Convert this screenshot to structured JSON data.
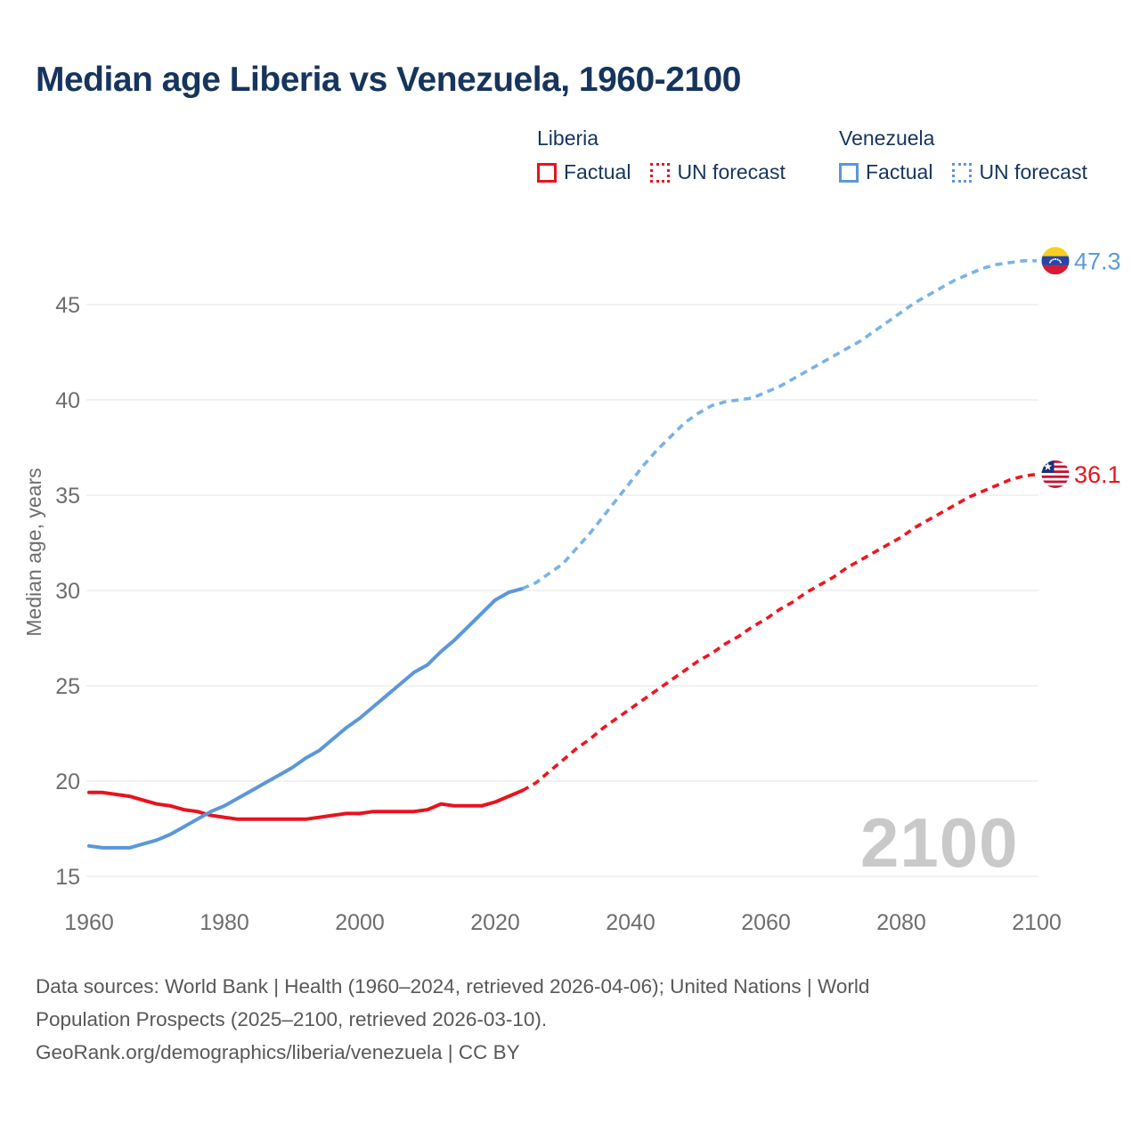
{
  "title": "Median age Liberia vs Venezuela, 1960-2100",
  "watermark": "2100",
  "legend": {
    "groups": [
      {
        "name": "Liberia",
        "color": "#e8131d",
        "items": [
          {
            "label": "Factual",
            "line_style": "solid"
          },
          {
            "label": "UN forecast",
            "line_style": "dashed"
          }
        ]
      },
      {
        "name": "Venezuela",
        "color": "#5b97d9",
        "items": [
          {
            "label": "Factual",
            "line_style": "solid"
          },
          {
            "label": "UN forecast",
            "line_style": "dashed"
          }
        ]
      }
    ]
  },
  "footer": {
    "lines": [
      "Data sources: World Bank | Health (1960–2024, retrieved 2026-04-06); United Nations | World",
      "Population Prospects (2025–2100, retrieved 2026-03-10).",
      "GeoRank.org/demographics/liberia/venezuela | CC BY"
    ]
  },
  "chart_data": {
    "type": "line",
    "title": "Median age Liberia vs Venezuela, 1960-2100",
    "xlabel": "",
    "ylabel": "Median age, years",
    "xlim": [
      1960,
      2100
    ],
    "ylim": [
      15,
      45
    ],
    "xticks": [
      1960,
      1980,
      2000,
      2020,
      2040,
      2060,
      2080,
      2100
    ],
    "yticks": [
      15,
      20,
      25,
      30,
      35,
      40,
      45
    ],
    "grid": "horizontal",
    "legend_position": "top",
    "series": [
      {
        "name": "Liberia — Factual",
        "color": "#e8131d",
        "line_style": "solid",
        "points": [
          [
            1960,
            19.4
          ],
          [
            1962,
            19.4
          ],
          [
            1964,
            19.3
          ],
          [
            1966,
            19.2
          ],
          [
            1968,
            19.0
          ],
          [
            1970,
            18.8
          ],
          [
            1972,
            18.7
          ],
          [
            1974,
            18.5
          ],
          [
            1976,
            18.4
          ],
          [
            1978,
            18.2
          ],
          [
            1980,
            18.1
          ],
          [
            1982,
            18.0
          ],
          [
            1984,
            18.0
          ],
          [
            1986,
            18.0
          ],
          [
            1988,
            18.0
          ],
          [
            1990,
            18.0
          ],
          [
            1992,
            18.0
          ],
          [
            1994,
            18.1
          ],
          [
            1996,
            18.2
          ],
          [
            1998,
            18.3
          ],
          [
            2000,
            18.3
          ],
          [
            2002,
            18.4
          ],
          [
            2004,
            18.4
          ],
          [
            2006,
            18.4
          ],
          [
            2008,
            18.4
          ],
          [
            2010,
            18.5
          ],
          [
            2012,
            18.8
          ],
          [
            2014,
            18.7
          ],
          [
            2016,
            18.7
          ],
          [
            2018,
            18.7
          ],
          [
            2020,
            18.9
          ],
          [
            2022,
            19.2
          ],
          [
            2024,
            19.5
          ]
        ]
      },
      {
        "name": "Liberia — UN forecast",
        "color": "#ee1620",
        "line_style": "dashed",
        "points": [
          [
            2024,
            19.5
          ],
          [
            2026,
            19.9
          ],
          [
            2028,
            20.5
          ],
          [
            2030,
            21.1
          ],
          [
            2032,
            21.7
          ],
          [
            2034,
            22.2
          ],
          [
            2036,
            22.8
          ],
          [
            2038,
            23.3
          ],
          [
            2040,
            23.8
          ],
          [
            2042,
            24.3
          ],
          [
            2044,
            24.8
          ],
          [
            2046,
            25.3
          ],
          [
            2048,
            25.8
          ],
          [
            2050,
            26.3
          ],
          [
            2052,
            26.7
          ],
          [
            2054,
            27.2
          ],
          [
            2056,
            27.6
          ],
          [
            2058,
            28.1
          ],
          [
            2060,
            28.5
          ],
          [
            2062,
            29.0
          ],
          [
            2064,
            29.4
          ],
          [
            2066,
            29.9
          ],
          [
            2068,
            30.3
          ],
          [
            2070,
            30.7
          ],
          [
            2072,
            31.2
          ],
          [
            2074,
            31.6
          ],
          [
            2076,
            32.0
          ],
          [
            2078,
            32.4
          ],
          [
            2080,
            32.8
          ],
          [
            2082,
            33.3
          ],
          [
            2084,
            33.7
          ],
          [
            2086,
            34.1
          ],
          [
            2088,
            34.5
          ],
          [
            2090,
            34.9
          ],
          [
            2092,
            35.2
          ],
          [
            2094,
            35.5
          ],
          [
            2096,
            35.8
          ],
          [
            2098,
            36.0
          ],
          [
            2100,
            36.1
          ]
        ]
      },
      {
        "name": "Venezuela — Factual",
        "color": "#5b97d9",
        "line_style": "solid",
        "points": [
          [
            1960,
            16.6
          ],
          [
            1962,
            16.5
          ],
          [
            1964,
            16.5
          ],
          [
            1966,
            16.5
          ],
          [
            1968,
            16.7
          ],
          [
            1970,
            16.9
          ],
          [
            1972,
            17.2
          ],
          [
            1974,
            17.6
          ],
          [
            1976,
            18.0
          ],
          [
            1978,
            18.4
          ],
          [
            1980,
            18.7
          ],
          [
            1982,
            19.1
          ],
          [
            1984,
            19.5
          ],
          [
            1986,
            19.9
          ],
          [
            1988,
            20.3
          ],
          [
            1990,
            20.7
          ],
          [
            1992,
            21.2
          ],
          [
            1994,
            21.6
          ],
          [
            1996,
            22.2
          ],
          [
            1998,
            22.8
          ],
          [
            2000,
            23.3
          ],
          [
            2002,
            23.9
          ],
          [
            2004,
            24.5
          ],
          [
            2006,
            25.1
          ],
          [
            2008,
            25.7
          ],
          [
            2010,
            26.1
          ],
          [
            2012,
            26.8
          ],
          [
            2014,
            27.4
          ],
          [
            2016,
            28.1
          ],
          [
            2018,
            28.8
          ],
          [
            2020,
            29.5
          ],
          [
            2022,
            29.9
          ],
          [
            2024,
            30.1
          ]
        ]
      },
      {
        "name": "Venezuela — UN forecast",
        "color": "#79b3e6",
        "line_style": "dashed",
        "points": [
          [
            2024,
            30.1
          ],
          [
            2026,
            30.4
          ],
          [
            2028,
            30.9
          ],
          [
            2030,
            31.4
          ],
          [
            2032,
            32.2
          ],
          [
            2034,
            33.0
          ],
          [
            2036,
            33.9
          ],
          [
            2038,
            34.8
          ],
          [
            2040,
            35.7
          ],
          [
            2042,
            36.6
          ],
          [
            2044,
            37.4
          ],
          [
            2046,
            38.1
          ],
          [
            2048,
            38.8
          ],
          [
            2050,
            39.3
          ],
          [
            2052,
            39.7
          ],
          [
            2054,
            39.9
          ],
          [
            2056,
            40.0
          ],
          [
            2058,
            40.1
          ],
          [
            2060,
            40.4
          ],
          [
            2062,
            40.7
          ],
          [
            2064,
            41.1
          ],
          [
            2066,
            41.5
          ],
          [
            2068,
            41.9
          ],
          [
            2070,
            42.3
          ],
          [
            2072,
            42.7
          ],
          [
            2074,
            43.1
          ],
          [
            2076,
            43.6
          ],
          [
            2078,
            44.1
          ],
          [
            2080,
            44.6
          ],
          [
            2082,
            45.1
          ],
          [
            2084,
            45.5
          ],
          [
            2086,
            45.9
          ],
          [
            2088,
            46.3
          ],
          [
            2090,
            46.6
          ],
          [
            2092,
            46.9
          ],
          [
            2094,
            47.1
          ],
          [
            2096,
            47.2
          ],
          [
            2098,
            47.3
          ],
          [
            2100,
            47.3
          ]
        ]
      }
    ],
    "end_labels": [
      {
        "flag": "venezuela",
        "label": "47.3",
        "color": "#5b9bd8",
        "x": 2100,
        "y": 47.3
      },
      {
        "flag": "liberia",
        "label": "36.1",
        "color": "#e8131d",
        "x": 2100,
        "y": 36.1
      }
    ]
  }
}
